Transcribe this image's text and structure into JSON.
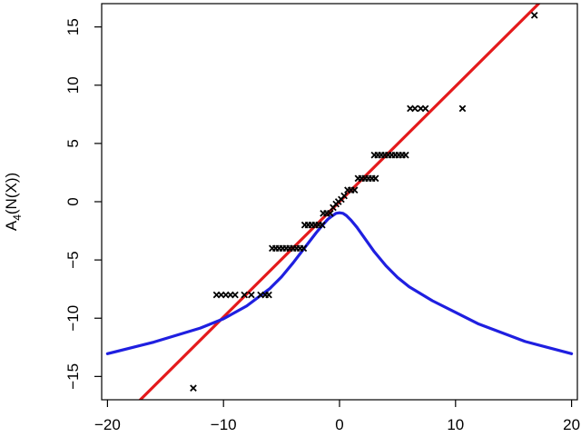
{
  "chart_data": {
    "type": "scatter",
    "title": "",
    "xlabel": "",
    "ylabel": "A",
    "ylabel_sub": "4",
    "ylabel_rest": "(N(X))",
    "xlim": [
      -20.5,
      20.5
    ],
    "ylim": [
      -17,
      17
    ],
    "x_ticks": [
      -20,
      -10,
      0,
      10,
      20
    ],
    "y_ticks": [
      -15,
      -10,
      -5,
      0,
      5,
      10,
      15
    ],
    "x_tick_labels": [
      "−20",
      "−10",
      "0",
      "10",
      "20"
    ],
    "y_tick_labels": [
      "−15",
      "−10",
      "−5",
      "0",
      "5",
      "10",
      "15"
    ],
    "grid": false,
    "colors": {
      "line": "#e41a1c",
      "curve": "#1f1fe0",
      "points": "#000000",
      "axis": "#000000"
    },
    "series": [
      {
        "kind": "line",
        "color": "#e41a1c",
        "x": [
          -20.5,
          20.5
        ],
        "y": [
          -20.3,
          20.3
        ]
      },
      {
        "kind": "curve",
        "color": "#1f1fe0",
        "x": [
          -20,
          -16,
          -12,
          -10,
          -8,
          -6,
          -5,
          -4,
          -3,
          -2,
          -1.5,
          -1,
          -0.6,
          -0.3,
          0,
          0.3,
          0.6,
          1,
          1.5,
          2,
          3,
          4,
          5,
          6,
          8,
          10,
          12,
          16,
          20
        ],
        "y": [
          -13.05,
          -12.05,
          -10.85,
          -10.05,
          -8.95,
          -7.45,
          -6.45,
          -5.25,
          -3.95,
          -2.65,
          -2.05,
          -1.5,
          -1.2,
          -1.0,
          -0.95,
          -1.0,
          -1.2,
          -1.6,
          -2.2,
          -2.9,
          -4.3,
          -5.5,
          -6.5,
          -7.3,
          -8.5,
          -9.5,
          -10.5,
          -12.0,
          -13.05
        ]
      },
      {
        "kind": "points",
        "color": "#000000",
        "points": [
          [
            -12.6,
            -16
          ],
          [
            -10.6,
            -8
          ],
          [
            -10.2,
            -8
          ],
          [
            -9.8,
            -8
          ],
          [
            -9.4,
            -8
          ],
          [
            -9.0,
            -8
          ],
          [
            -8.2,
            -8
          ],
          [
            -7.6,
            -8
          ],
          [
            -6.8,
            -8
          ],
          [
            -6.4,
            -8
          ],
          [
            -6.1,
            -8
          ],
          [
            -5.8,
            -4
          ],
          [
            -5.5,
            -4
          ],
          [
            -5.2,
            -4
          ],
          [
            -4.9,
            -4
          ],
          [
            -4.6,
            -4
          ],
          [
            -4.3,
            -4
          ],
          [
            -4.0,
            -4
          ],
          [
            -3.7,
            -4
          ],
          [
            -3.4,
            -4
          ],
          [
            -3.1,
            -4
          ],
          [
            -3.0,
            -2
          ],
          [
            -2.7,
            -2
          ],
          [
            -2.4,
            -2
          ],
          [
            -2.1,
            -2
          ],
          [
            -1.8,
            -2
          ],
          [
            -1.5,
            -2
          ],
          [
            -1.4,
            -1
          ],
          [
            -1.1,
            -1
          ],
          [
            -0.8,
            -1
          ],
          [
            -0.55,
            -0.5
          ],
          [
            -0.3,
            -0.2
          ],
          [
            -0.1,
            0
          ],
          [
            0.15,
            0.2
          ],
          [
            0.4,
            0.5
          ],
          [
            0.7,
            1
          ],
          [
            1.0,
            1
          ],
          [
            1.3,
            1
          ],
          [
            1.6,
            2
          ],
          [
            1.9,
            2
          ],
          [
            2.2,
            2
          ],
          [
            2.5,
            2
          ],
          [
            2.8,
            2
          ],
          [
            3.1,
            2
          ],
          [
            3.0,
            4
          ],
          [
            3.3,
            4
          ],
          [
            3.6,
            4
          ],
          [
            3.9,
            4
          ],
          [
            4.2,
            4
          ],
          [
            4.5,
            4
          ],
          [
            4.8,
            4
          ],
          [
            5.1,
            4
          ],
          [
            5.4,
            4
          ],
          [
            5.7,
            4
          ],
          [
            6.1,
            8
          ],
          [
            6.5,
            8
          ],
          [
            7.0,
            8
          ],
          [
            7.4,
            8
          ],
          [
            10.6,
            8
          ],
          [
            16.8,
            16
          ]
        ]
      }
    ]
  }
}
